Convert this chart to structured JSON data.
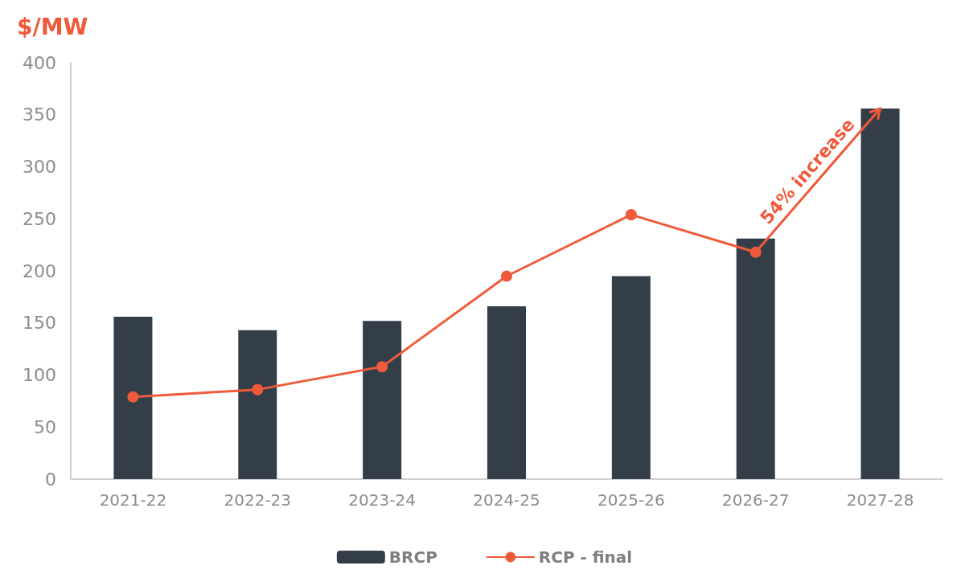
{
  "chart_data": {
    "type": "bar",
    "ylabel": "$/MW",
    "categories": [
      "2021-22",
      "2022-23",
      "2023-24",
      "2024-25",
      "2025-26",
      "2026-27",
      "2027-28"
    ],
    "series": [
      {
        "name": "BRCP",
        "color": "#333e48",
        "values": [
          156,
          143,
          152,
          166,
          195,
          231,
          356
        ]
      },
      {
        "name": "RCP - final",
        "type": "line",
        "color": "#ef5a3a",
        "values": [
          79,
          86,
          108,
          195,
          254,
          218,
          null
        ]
      }
    ],
    "ylim": [
      0,
      400
    ],
    "yticks": [
      0,
      50,
      100,
      150,
      200,
      250,
      300,
      350,
      400
    ],
    "grid": false,
    "legend": "bottom",
    "marker": "circle",
    "line_style": "solid",
    "annotations": [
      {
        "text": "54% increase",
        "x": "2027-28",
        "y": 356
      }
    ]
  }
}
